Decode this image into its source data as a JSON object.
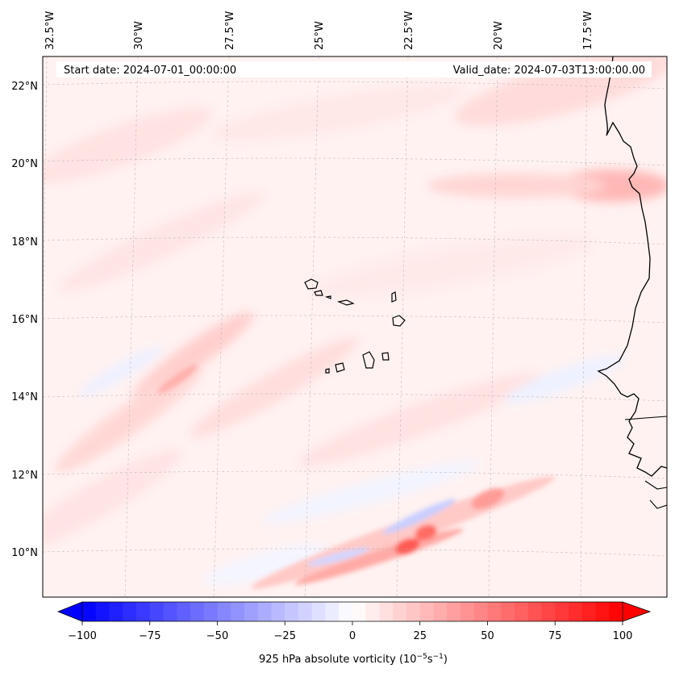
{
  "header": {
    "start_date": "Start date: 2024-07-01_00:00:00",
    "valid_date": "Valid_date: 2024-07-03T13:00:00.00"
  },
  "longitude_labels": [
    "32.5°W",
    "30°W",
    "27.5°W",
    "25°W",
    "22.5°W",
    "20°W",
    "17.5°W"
  ],
  "latitude_labels": [
    "22°N",
    "20°N",
    "18°N",
    "16°N",
    "14°N",
    "12°N",
    "10°N"
  ],
  "colorbar": {
    "ticks": [
      "−100",
      "−75",
      "−50",
      "−25",
      "0",
      "25",
      "50",
      "75",
      "100"
    ],
    "label_prefix": "925 hPa absolute vorticity (10",
    "label_exp1": "−5",
    "label_mid": "s",
    "label_exp2": "−1",
    "label_suffix": ")",
    "vmin": -100,
    "vmax": 100,
    "colors": {
      "negative": "#0000ff",
      "zero": "#ffffff",
      "positive": "#ff0000"
    }
  },
  "map": {
    "extent_lon": [
      -33,
      -15.5
    ],
    "extent_lat": [
      9,
      22.8
    ],
    "field": "925 hPa absolute vorticity",
    "units": "1e-5 s^-1"
  }
}
